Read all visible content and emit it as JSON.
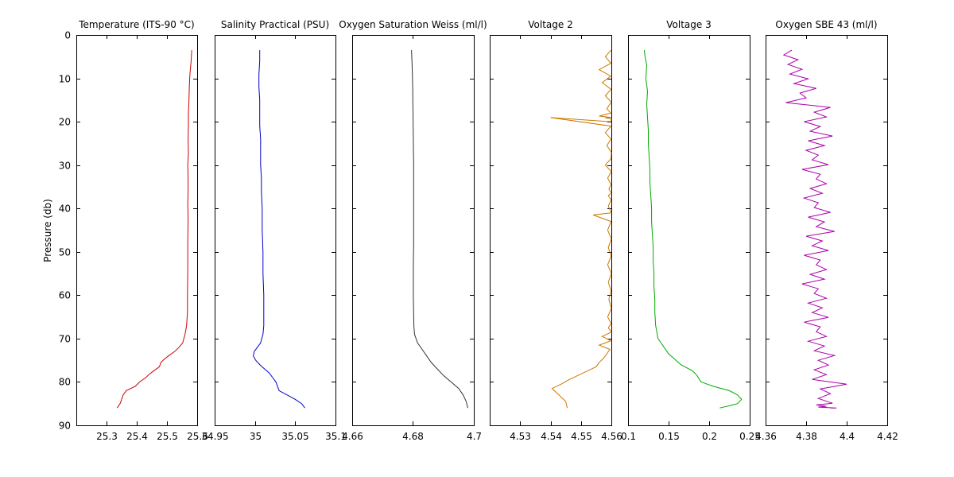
{
  "figure": {
    "ylabel": "Pressure (db)",
    "y_tick_labels": [
      "0",
      "10",
      "20",
      "30",
      "40",
      "50",
      "60",
      "70",
      "80",
      "90"
    ]
  },
  "chart_data": [
    {
      "type": "line",
      "title": "Temperature (ITS-90 °C)",
      "xlabel": "",
      "ylabel": "Pressure (db)",
      "xlim": [
        25.2,
        25.6
      ],
      "ylim": [
        0,
        90
      ],
      "y_inverted": true,
      "x_tick_values": [
        25.3,
        25.4,
        25.5,
        25.6
      ],
      "x_tick_labels": [
        "25.3",
        "25.4",
        "25.5",
        "25.6"
      ],
      "color": "#cc0000",
      "series": [
        {
          "x": [
            25.582,
            25.58,
            25.576,
            25.574,
            25.573,
            25.571,
            25.571,
            25.57,
            25.571,
            25.569,
            25.57,
            25.57,
            25.569,
            25.57,
            25.569,
            25.569,
            25.568,
            25.568,
            25.565,
            25.56,
            25.552,
            25.54,
            25.525,
            25.505,
            25.49,
            25.48,
            25.475,
            25.455,
            25.44,
            25.43,
            25.41,
            25.395,
            25.365,
            25.355,
            25.35,
            25.345,
            25.335
          ],
          "y": [
            3.5,
            6,
            9,
            12,
            15,
            18,
            21,
            24,
            27,
            30,
            33,
            36,
            39,
            42,
            48,
            54,
            60,
            64,
            67,
            69,
            71,
            72,
            73,
            74,
            74.8,
            75.5,
            76.5,
            77.5,
            78.3,
            79,
            80,
            81,
            82,
            83,
            84,
            85,
            86
          ]
        }
      ]
    },
    {
      "type": "line",
      "title": "Salinity Practical (PSU)",
      "xlabel": "",
      "ylabel": "",
      "xlim": [
        34.95,
        35.1
      ],
      "ylim": [
        0,
        90
      ],
      "y_inverted": true,
      "x_tick_values": [
        34.95,
        35,
        35.05,
        35.1
      ],
      "x_tick_labels": [
        "34.95",
        "35",
        "35.05",
        "35.1"
      ],
      "color": "#0000cc",
      "series": [
        {
          "x": [
            35.006,
            35.006,
            35.005,
            35.005,
            35.006,
            35.006,
            35.006,
            35.007,
            35.007,
            35.007,
            35.008,
            35.008,
            35.009,
            35.009,
            35.01,
            35.01,
            35.011,
            35.011,
            35.011,
            35.01,
            35.007,
            35.003,
            34.999,
            34.998,
            35.001,
            35.006,
            35.012,
            35.018,
            35.022,
            35.026,
            35.03,
            35.04,
            35.05,
            35.058,
            35.062
          ],
          "y": [
            3.5,
            6,
            9,
            12,
            15,
            18,
            21,
            24,
            27,
            30,
            33,
            36,
            40,
            45,
            50,
            55,
            60,
            64,
            67,
            69,
            71,
            72,
            73,
            74,
            75,
            76,
            77,
            78,
            79,
            80,
            82,
            83,
            84,
            85,
            86
          ]
        }
      ]
    },
    {
      "type": "line",
      "title": "Oxygen Saturation Weiss (ml/l)",
      "xlabel": "",
      "ylabel": "",
      "xlim": [
        4.66,
        4.7
      ],
      "ylim": [
        0,
        90
      ],
      "y_inverted": true,
      "x_tick_values": [
        4.66,
        4.68,
        4.7
      ],
      "x_tick_labels": [
        "4.66",
        "4.68",
        "4.7"
      ],
      "color": "#333333",
      "series": [
        {
          "x": [
            4.6795,
            4.6797,
            4.6799,
            4.68,
            4.6801,
            4.6802,
            4.6802,
            4.6802,
            4.6802,
            4.6801,
            4.6801,
            4.6802,
            4.6803,
            4.6805,
            4.6815,
            4.683,
            4.6845,
            4.686,
            4.688,
            4.69,
            4.6925,
            4.695,
            4.6965,
            4.6975,
            4.698
          ],
          "y": [
            3.5,
            7,
            12,
            18,
            24,
            30,
            36,
            42,
            48,
            54,
            60,
            64,
            67,
            69,
            71,
            72.5,
            74,
            75.5,
            77,
            78.5,
            80,
            81.5,
            83,
            84.5,
            86
          ]
        }
      ]
    },
    {
      "type": "line",
      "title": "Voltage 2",
      "xlabel": "",
      "ylabel": "",
      "xlim": [
        4.52,
        4.56
      ],
      "ylim": [
        0,
        90
      ],
      "y_inverted": true,
      "x_tick_values": [
        4.53,
        4.54,
        4.55,
        4.56
      ],
      "x_tick_labels": [
        "4.53",
        "4.54",
        "4.55",
        "4.56"
      ],
      "color": "#cc7700",
      "series": [
        {
          "x": [
            4.5599,
            4.558,
            4.5599,
            4.556,
            4.5598,
            4.557,
            4.5599,
            4.558,
            4.56,
            4.5585,
            4.5598,
            4.556,
            4.5599,
            4.558,
            4.56,
            4.5599,
            4.54,
            4.5599,
            4.558,
            4.5599,
            4.5585,
            4.56,
            4.5599,
            4.558,
            4.56,
            4.5588,
            4.5599,
            4.5592,
            4.56,
            4.559,
            4.5599,
            4.559,
            4.56,
            4.554,
            4.5599,
            4.5588,
            4.56,
            4.559,
            4.5599,
            4.5588,
            4.56,
            4.559,
            4.5599,
            4.5592,
            4.56,
            4.5588,
            4.5599,
            4.559,
            4.56,
            4.557,
            4.5599,
            4.556,
            4.5595,
            4.5585,
            4.5575,
            4.556,
            4.555,
            4.552,
            4.549,
            4.546,
            4.5435,
            4.5405,
            4.542,
            4.5435,
            4.545,
            4.5455
          ],
          "y": [
            3.5,
            5,
            6.5,
            8,
            9.5,
            11,
            12.5,
            14,
            15.5,
            17,
            18,
            18.7,
            19,
            19.1,
            19.3,
            20,
            19.05,
            21,
            22.5,
            24,
            25.5,
            27,
            28.5,
            30,
            31.5,
            33,
            34.5,
            35.5,
            36.5,
            37,
            38,
            39.5,
            41,
            41.5,
            43,
            45,
            47,
            49,
            51,
            53,
            55,
            57,
            59,
            61,
            63,
            65,
            66.5,
            67.5,
            68.5,
            69.5,
            70.5,
            71.5,
            72.5,
            73.5,
            74.5,
            75.5,
            76.5,
            77.5,
            78.5,
            79.5,
            80.5,
            81.5,
            82.5,
            83.5,
            84.5,
            86
          ]
        }
      ]
    },
    {
      "type": "line",
      "title": "Voltage 3",
      "xlabel": "",
      "ylabel": "",
      "xlim": [
        0.1,
        0.25
      ],
      "ylim": [
        0,
        90
      ],
      "y_inverted": true,
      "x_tick_values": [
        0.1,
        0.15,
        0.2,
        0.25
      ],
      "x_tick_labels": [
        "0.1",
        "0.15",
        "0.2",
        "0.25"
      ],
      "color": "#00aa00",
      "series": [
        {
          "x": [
            0.12,
            0.121,
            0.123,
            0.122,
            0.124,
            0.123,
            0.124,
            0.125,
            0.125,
            0.126,
            0.127,
            0.127,
            0.128,
            0.129,
            0.129,
            0.13,
            0.131,
            0.131,
            0.132,
            0.132,
            0.133,
            0.133,
            0.134,
            0.137,
            0.15,
            0.165,
            0.18,
            0.185,
            0.19,
            0.205,
            0.225,
            0.235,
            0.24,
            0.235,
            0.225,
            0.213
          ],
          "y": [
            3.5,
            5,
            7,
            10,
            13,
            16,
            19,
            22,
            25,
            28,
            31,
            34,
            37,
            40,
            43,
            46,
            49,
            52,
            55,
            58,
            61,
            64,
            67,
            70,
            73.5,
            76,
            77.5,
            78.5,
            80,
            81,
            82,
            83,
            84,
            85,
            85.5,
            86
          ]
        }
      ]
    },
    {
      "type": "line",
      "title": "Oxygen SBE 43 (ml/l)",
      "xlabel": "",
      "ylabel": "",
      "xlim": [
        4.36,
        4.42
      ],
      "ylim": [
        0,
        90
      ],
      "y_inverted": true,
      "x_tick_values": [
        4.36,
        4.38,
        4.4,
        4.42
      ],
      "x_tick_labels": [
        "4.36",
        "4.38",
        "4.4",
        "4.42"
      ],
      "color": "#aa00aa",
      "series": [
        {
          "x": [
            4.373,
            4.369,
            4.376,
            4.371,
            4.378,
            4.372,
            4.381,
            4.374,
            4.385,
            4.377,
            4.38,
            4.37,
            4.392,
            4.384,
            4.39,
            4.379,
            4.387,
            4.382,
            4.393,
            4.381,
            4.389,
            4.38,
            4.386,
            4.383,
            4.391,
            4.378,
            4.387,
            4.385,
            4.39,
            4.382,
            4.388,
            4.379,
            4.386,
            4.384,
            4.392,
            4.381,
            4.389,
            4.385,
            4.394,
            4.38,
            4.388,
            4.383,
            4.391,
            4.379,
            4.387,
            4.385,
            4.39,
            4.382,
            4.389,
            4.378,
            4.386,
            4.384,
            4.39,
            4.381,
            4.388,
            4.383,
            4.391,
            4.379,
            4.387,
            4.385,
            4.39,
            4.381,
            4.389,
            4.384,
            4.394,
            4.386,
            4.391,
            4.384,
            4.39,
            4.383,
            4.4,
            4.387,
            4.392,
            4.386,
            4.393,
            4.385,
            4.39,
            4.386,
            4.395,
            4.392
          ],
          "y": [
            3.5,
            4.6,
            5.7,
            6.8,
            7.9,
            9.0,
            10.1,
            11.2,
            12.3,
            13.4,
            14.5,
            15.6,
            16.7,
            17.8,
            18.9,
            20.0,
            21.1,
            22.2,
            23.3,
            24.4,
            25.5,
            26.6,
            27.7,
            28.8,
            29.9,
            31.0,
            32.1,
            33.2,
            34.3,
            35.4,
            36.5,
            37.6,
            38.7,
            39.8,
            40.9,
            42.0,
            43.1,
            44.2,
            45.3,
            46.4,
            47.5,
            48.6,
            49.7,
            50.8,
            51.9,
            53.0,
            54.1,
            55.2,
            56.3,
            57.4,
            58.5,
            59.6,
            60.7,
            61.8,
            62.9,
            64.0,
            65.1,
            66.2,
            67.3,
            68.4,
            69.5,
            70.6,
            71.7,
            72.8,
            73.9,
            75.0,
            76.1,
            77.2,
            78.3,
            79.4,
            80.5,
            81.6,
            82.7,
            83.8,
            84.9,
            85.3,
            85.6,
            85.8,
            86.0,
            86.0
          ]
        }
      ]
    }
  ]
}
